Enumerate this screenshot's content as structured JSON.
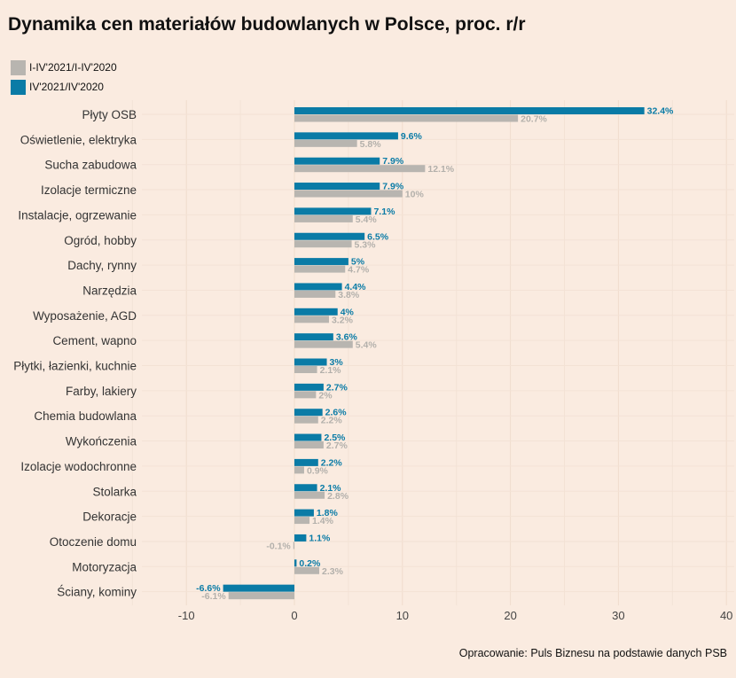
{
  "title": "Dynamika cen materiałów budowlanych w Polsce, proc. r/r",
  "source": "Opracowanie: Puls Biznesu na podstawie danych PSB",
  "legend": [
    {
      "label": "I-IV'2021/I-IV'2020",
      "color": "#b8b5b0"
    },
    {
      "label": "IV'2021/IV'2020",
      "color": "#0a7ba6"
    }
  ],
  "chart_data": {
    "type": "bar",
    "orientation": "horizontal",
    "categories": [
      "Płyty OSB",
      "Oświetlenie, elektryka",
      "Sucha zabudowa",
      "Izolacje termiczne",
      "Instalacje, ogrzewanie",
      "Ogród, hobby",
      "Dachy, rynny",
      "Narzędzia",
      "Wyposażenie, AGD",
      "Cement, wapno",
      "Płytki, łazienki, kuchnie",
      "Farby, lakiery",
      "Chemia budowlana",
      "Wykończenia",
      "Izolacje wodochronne",
      "Stolarka",
      "Dekoracje",
      "Otoczenie domu",
      "Motoryzacja",
      "Ściany, kominy"
    ],
    "series": [
      {
        "name": "IV'2021/IV'2020",
        "color": "#0a7ba6",
        "values": [
          32.4,
          9.6,
          7.9,
          7.9,
          7.1,
          6.5,
          5,
          4.4,
          4,
          3.6,
          3,
          2.7,
          2.6,
          2.5,
          2.2,
          2.1,
          1.8,
          1.1,
          0.2,
          -6.6
        ],
        "labels": [
          "32.4%",
          "9.6%",
          "7.9%",
          "7.9%",
          "7.1%",
          "6.5%",
          "5%",
          "4.4%",
          "4%",
          "3.6%",
          "3%",
          "2.7%",
          "2.6%",
          "2.5%",
          "2.2%",
          "2.1%",
          "1.8%",
          "1.1%",
          "0.2%",
          "-6.6%"
        ]
      },
      {
        "name": "I-IV'2021/I-IV'2020",
        "color": "#b8b5b0",
        "values": [
          20.7,
          5.8,
          12.1,
          10,
          5.4,
          5.3,
          4.7,
          3.8,
          3.2,
          5.4,
          2.1,
          2,
          2.2,
          2.7,
          0.9,
          2.8,
          1.4,
          -0.1,
          2.3,
          -6.1
        ],
        "labels": [
          "20.7%",
          "5.8%",
          "12.1%",
          "10%",
          "5.4%",
          "5.3%",
          "4.7%",
          "3.8%",
          "3.2%",
          "5.4%",
          "2.1%",
          "2%",
          "2.2%",
          "2.7%",
          "0.9%",
          "2.8%",
          "1.4%",
          "-0.1%",
          "2.3%",
          "-6.1%"
        ]
      }
    ],
    "xlim": [
      -15,
      40
    ],
    "xticks": [
      -10,
      0,
      10,
      20,
      30,
      40
    ],
    "xtick_labels": [
      "-10",
      "0",
      "10",
      "20",
      "30",
      "40"
    ],
    "grid": true,
    "legend_position": "top-left"
  }
}
